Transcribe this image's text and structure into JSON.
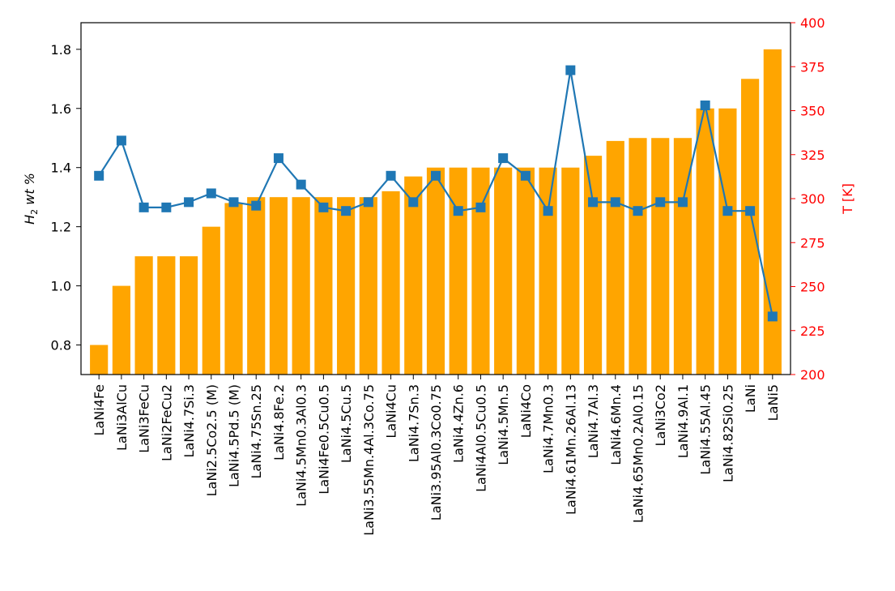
{
  "chart_data": {
    "type": "bar+line",
    "categories": [
      "LaNi4Fe",
      "LaNi3AlCu",
      "LaNi3FeCu",
      "LaNi2FeCu2",
      "LaNi4.7Si.3",
      "LaNi2.5Co2.5 (M)",
      "LaNi4.5Pd.5 (M)",
      "LaNi4.75Sn.25",
      "LaNi4.8Fe.2",
      "LaNi4.5Mn0.3Al0.3",
      "LaNi4Fe0.5Cu0.5",
      "LaNi4.5Cu.5",
      "LaNi3.55Mn.4Al.3Co.75",
      "LaNi4Cu",
      "LaNi4.7Sn.3",
      "LaNi3.95Al0.3Co0.75",
      "LaNi4.4Zn.6",
      "LaNi4Al0.5Cu0.5",
      "LaNi4.5Mn.5",
      "LaNi4Co",
      "LaNi4.7Mn0.3",
      "LaNi4.61Mn.26Al.13",
      "LaNi4.7Al.3",
      "LaNi4.6Mn.4",
      "LaNi4.65Mn0.2Al0.15",
      "LaNi3Co2",
      "LaNi4.9Al.1",
      "LaNi4.55Al.45",
      "LaNi4.82Si0.25",
      "LaNi",
      "LaNi5"
    ],
    "series": [
      {
        "axis": "left",
        "type": "bar",
        "color": "#FFA500",
        "values": [
          0.8,
          1.0,
          1.1,
          1.1,
          1.1,
          1.2,
          1.28,
          1.3,
          1.3,
          1.3,
          1.3,
          1.3,
          1.3,
          1.32,
          1.37,
          1.4,
          1.4,
          1.4,
          1.4,
          1.4,
          1.4,
          1.4,
          1.44,
          1.49,
          1.5,
          1.5,
          1.5,
          1.6,
          1.6,
          1.7,
          1.8
        ]
      },
      {
        "axis": "right",
        "type": "line",
        "marker": "square",
        "color": "#1F77B4",
        "values": [
          313,
          333,
          295,
          295,
          298,
          303,
          298,
          296,
          323,
          308,
          295,
          293,
          298,
          313,
          298,
          313,
          293,
          295,
          323,
          313,
          293,
          373,
          298,
          298,
          293,
          298,
          298,
          353,
          293,
          293,
          233
        ]
      }
    ],
    "ylabel": "H2 wt %",
    "ylabel_parts": {
      "main": "H",
      "sub": "2",
      "rest": " wt %"
    },
    "y2label": "T [K]",
    "ylim": [
      0.7,
      1.89
    ],
    "y2lim": [
      200,
      400
    ],
    "yticks": [
      0.8,
      1.0,
      1.2,
      1.4,
      1.6,
      1.8
    ],
    "y2ticks": [
      200,
      225,
      250,
      275,
      300,
      325,
      350,
      375,
      400
    ],
    "right_axis_color": "#FF0000",
    "grid": false
  }
}
